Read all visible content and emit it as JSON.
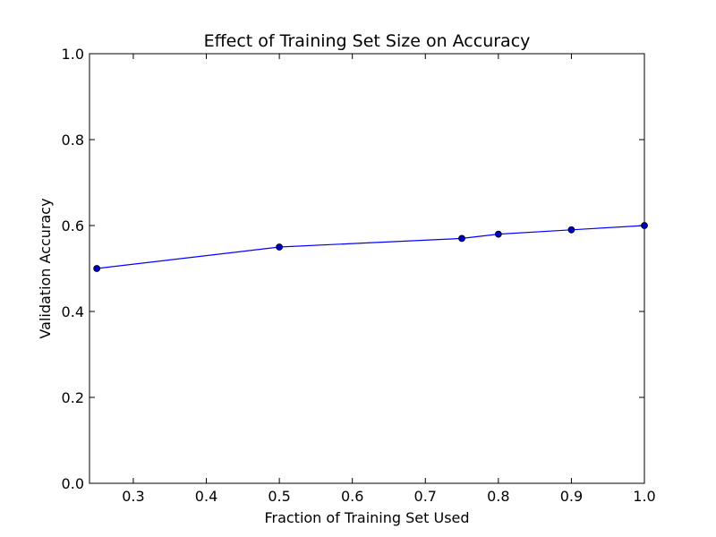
{
  "chart_data": {
    "type": "line",
    "title": "Effect of Training Set Size on Accuracy",
    "xlabel": "Fraction of Training Set Used",
    "ylabel": "Validation Accuracy",
    "xlim": [
      0.24,
      1.0
    ],
    "ylim": [
      0.0,
      1.0
    ],
    "xticks": [
      0.3,
      0.4,
      0.5,
      0.6,
      0.7,
      0.8,
      0.9,
      1.0
    ],
    "xtick_labels": [
      "0.3",
      "0.4",
      "0.5",
      "0.6",
      "0.7",
      "0.8",
      "0.9",
      "1.0"
    ],
    "yticks": [
      0.0,
      0.2,
      0.4,
      0.6,
      0.8,
      1.0
    ],
    "ytick_labels": [
      "0.0",
      "0.2",
      "0.4",
      "0.6",
      "0.8",
      "1.0"
    ],
    "grid": false,
    "series": [
      {
        "x": [
          0.25,
          0.5,
          0.75,
          0.8,
          0.9,
          1.0
        ],
        "y": [
          0.5,
          0.55,
          0.57,
          0.58,
          0.59,
          0.6
        ],
        "color": "#0000ff",
        "marker": "circle"
      }
    ]
  }
}
